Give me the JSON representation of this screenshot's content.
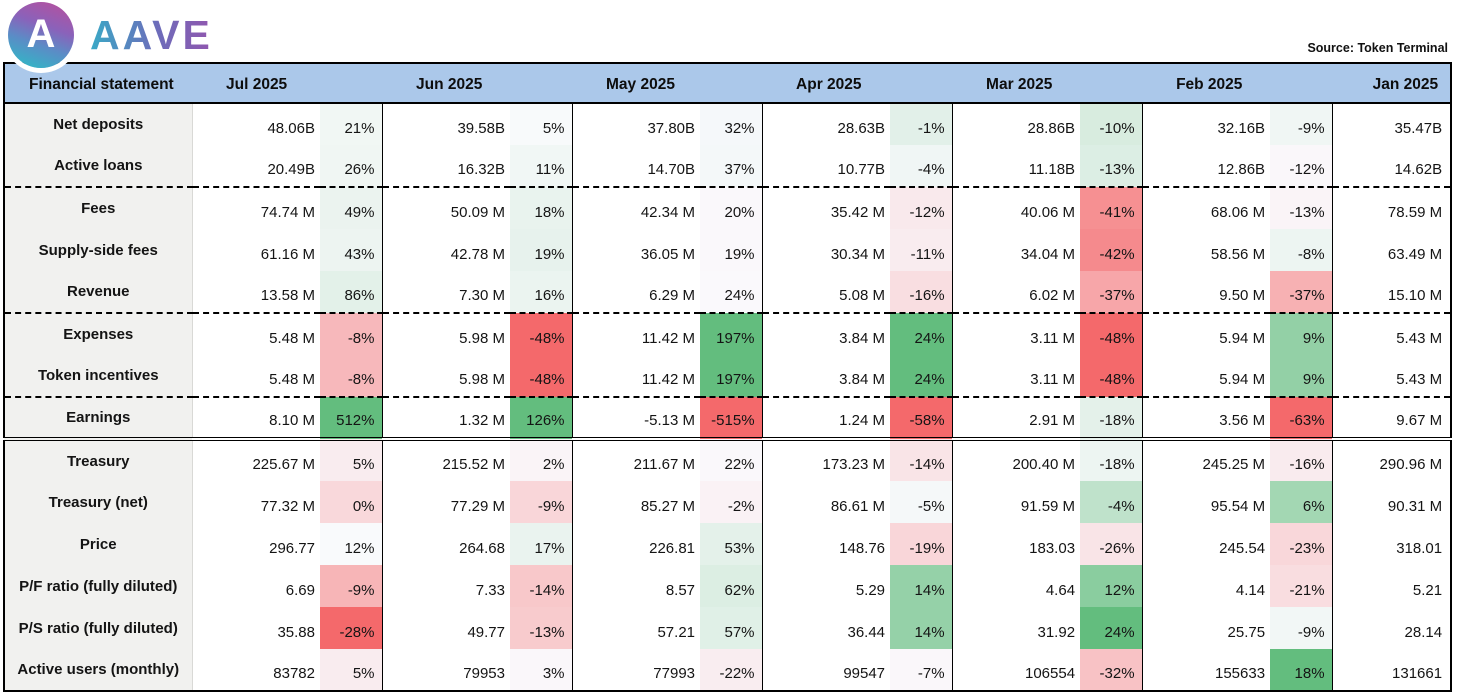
{
  "brand": {
    "mark_letter": "A",
    "wordmark": "AAVE"
  },
  "source": "Source: Token Terminal",
  "ui_colors": {
    "header_bg": "#abc8ea",
    "label_column_bg": "#f1f1ef",
    "heatmap_green_max": "#63bd7e",
    "heatmap_red_max": "#f4696b",
    "logo_gradient": [
      "#b6509e",
      "#2ebac6"
    ],
    "wordmark_gradient": [
      "#3aa9c6",
      "#9156ae"
    ]
  },
  "chart_data": {
    "type": "table",
    "title": "AAVE financial statement",
    "source": "Token Terminal",
    "legend_note": "percent cells are a red-white-green heatmap of month-over-month change, scaled per column",
    "columns": [
      "Financial statement",
      "Jul 2025",
      "Jun 2025",
      "May 2025",
      "Apr 2025",
      "Mar 2025",
      "Feb 2025",
      "Jan 2025"
    ],
    "rows": [
      {
        "label": "Net deposits",
        "divider": null,
        "values": [
          "48.06B",
          "39.58B",
          "37.80B",
          "28.63B",
          "28.86B",
          "32.16B",
          "35.47B"
        ],
        "pct": [
          "21%",
          "5%",
          "32%",
          "-1%",
          "-10%",
          "-9%"
        ],
        "colors": [
          "#f1f7f4",
          "#f8fafb",
          "#f5f8fa",
          "#e2f0e9",
          "#d8ecdf",
          "#f0f6f4"
        ]
      },
      {
        "label": "Active loans",
        "divider": "dashed",
        "values": [
          "20.49B",
          "16.32B",
          "14.70B",
          "10.77B",
          "11.18B",
          "12.86B",
          "14.62B"
        ],
        "pct": [
          "26%",
          "11%",
          "37%",
          "-4%",
          "-13%",
          "-12%"
        ],
        "colors": [
          "#f0f6f3",
          "#f1f7f5",
          "#f4f8f9",
          "#f0f6f5",
          "#dceee4",
          "#faf7fa"
        ]
      },
      {
        "label": "Fees",
        "divider": null,
        "values": [
          "74.74 M",
          "50.09 M",
          "42.34 M",
          "35.42 M",
          "40.06 M",
          "68.06 M",
          "78.59 M"
        ],
        "pct": [
          "49%",
          "18%",
          "20%",
          "-12%",
          "-41%",
          "-13%"
        ],
        "colors": [
          "#ebf3ef",
          "#e9f3ee",
          "#faf8fb",
          "#f9e9ec",
          "#f69092",
          "#faf4f7"
        ]
      },
      {
        "label": "Supply-side fees",
        "divider": null,
        "values": [
          "61.16 M",
          "42.78 M",
          "36.05 M",
          "30.34 M",
          "34.04 M",
          "58.56 M",
          "63.49 M"
        ],
        "pct": [
          "43%",
          "19%",
          "19%",
          "-11%",
          "-42%",
          "-8%"
        ],
        "colors": [
          "#edf4f1",
          "#e7f2ed",
          "#faf8fb",
          "#f9ecef",
          "#f58a8d",
          "#edf5f2"
        ]
      },
      {
        "label": "Revenue",
        "divider": "dashed",
        "values": [
          "13.58 M",
          "7.30 M",
          "6.29 M",
          "5.08 M",
          "6.02 M",
          "9.50 M",
          "15.10 M"
        ],
        "pct": [
          "86%",
          "16%",
          "24%",
          "-16%",
          "-37%",
          "-37%"
        ],
        "colors": [
          "#e3f1e9",
          "#ebf4f0",
          "#faf9fc",
          "#f9dee1",
          "#f7a6a9",
          "#f7b1b3"
        ]
      },
      {
        "label": "Expenses",
        "divider": null,
        "values": [
          "5.48 M",
          "5.98 M",
          "11.42 M",
          "3.84 M",
          "3.11 M",
          "5.94 M",
          "5.43 M"
        ],
        "pct": [
          "-8%",
          "-48%",
          "197%",
          "24%",
          "-48%",
          "9%"
        ],
        "colors": [
          "#f7b8bb",
          "#f4696b",
          "#63bd7e",
          "#63bd7e",
          "#f4696b",
          "#93d0a6"
        ]
      },
      {
        "label": "Token incentives",
        "divider": "dashed",
        "values": [
          "5.48 M",
          "5.98 M",
          "11.42 M",
          "3.84 M",
          "3.11 M",
          "5.94 M",
          "5.43 M"
        ],
        "pct": [
          "-8%",
          "-48%",
          "197%",
          "24%",
          "-48%",
          "9%"
        ],
        "colors": [
          "#f7b8bb",
          "#f4696b",
          "#63bd7e",
          "#63bd7e",
          "#f4696b",
          "#93d0a6"
        ]
      },
      {
        "label": "Earnings",
        "divider": "double",
        "values": [
          "8.10 M",
          "1.32 M",
          "-5.13 M",
          "1.24 M",
          "2.91 M",
          "3.56 M",
          "9.67 M"
        ],
        "pct": [
          "512%",
          "126%",
          "-515%",
          "-58%",
          "-18%",
          "-63%"
        ],
        "colors": [
          "#63bd7e",
          "#63bd7e",
          "#f4696b",
          "#f4696b",
          "#e4f1ea",
          "#f4696b"
        ]
      },
      {
        "label": "Treasury",
        "divider": null,
        "values": [
          "225.67 M",
          "215.52 M",
          "211.67 M",
          "173.23 M",
          "200.40 M",
          "245.25 M",
          "290.96 M"
        ],
        "pct": [
          "5%",
          "2%",
          "22%",
          "-14%",
          "-18%",
          "-16%"
        ],
        "colors": [
          "#f9ecef",
          "#faf4f7",
          "#faf8fb",
          "#f9e4e7",
          "#edf5f2",
          "#f9ebee"
        ]
      },
      {
        "label": "Treasury (net)",
        "divider": null,
        "values": [
          "77.32 M",
          "77.29 M",
          "85.27 M",
          "86.61 M",
          "91.59 M",
          "95.54 M",
          "90.31 M"
        ],
        "pct": [
          "0%",
          "-9%",
          "-2%",
          "-5%",
          "-4%",
          "6%"
        ],
        "colors": [
          "#f9d8db",
          "#f9d6d9",
          "#faf2f5",
          "#f5f8f9",
          "#bfe2cb",
          "#a3d7b3"
        ]
      },
      {
        "label": "Price",
        "divider": null,
        "values": [
          "296.77",
          "264.68",
          "226.81",
          "148.76",
          "183.03",
          "245.54",
          "318.01"
        ],
        "pct": [
          "12%",
          "17%",
          "53%",
          "-19%",
          "-26%",
          "-23%"
        ],
        "colors": [
          "#f9fafc",
          "#eaf3ef",
          "#e4f1ea",
          "#f9d6d9",
          "#f9e4e7",
          "#f9d7da"
        ]
      },
      {
        "label": "P/F ratio (fully diluted)",
        "divider": null,
        "values": [
          "6.69",
          "7.33",
          "8.57",
          "5.29",
          "4.64",
          "4.14",
          "5.21"
        ],
        "pct": [
          "-9%",
          "-14%",
          "62%",
          "14%",
          "12%",
          "-21%"
        ],
        "colors": [
          "#f7b5b7",
          "#f8c8ca",
          "#dceee3",
          "#95d1a8",
          "#8acd9f",
          "#f9dde0"
        ]
      },
      {
        "label": "P/S ratio (fully diluted)",
        "divider": null,
        "values": [
          "35.88",
          "49.77",
          "57.21",
          "36.44",
          "31.92",
          "25.75",
          "28.14"
        ],
        "pct": [
          "-28%",
          "-13%",
          "57%",
          "14%",
          "24%",
          "-9%"
        ],
        "colors": [
          "#f4696b",
          "#f8cbcd",
          "#e0f0e7",
          "#95d1a8",
          "#63bd7e",
          "#f2f7f6"
        ]
      },
      {
        "label": "Active users (monthly)",
        "divider": null,
        "values": [
          "83782",
          "79953",
          "77993",
          "99547",
          "106554",
          "155633",
          "131661"
        ],
        "pct": [
          "5%",
          "3%",
          "-22%",
          "-7%",
          "-32%",
          "18%"
        ],
        "colors": [
          "#f9ecef",
          "#faf7fa",
          "#f9edf0",
          "#faf7fa",
          "#f8c2c5",
          "#63bd7e"
        ]
      }
    ]
  }
}
